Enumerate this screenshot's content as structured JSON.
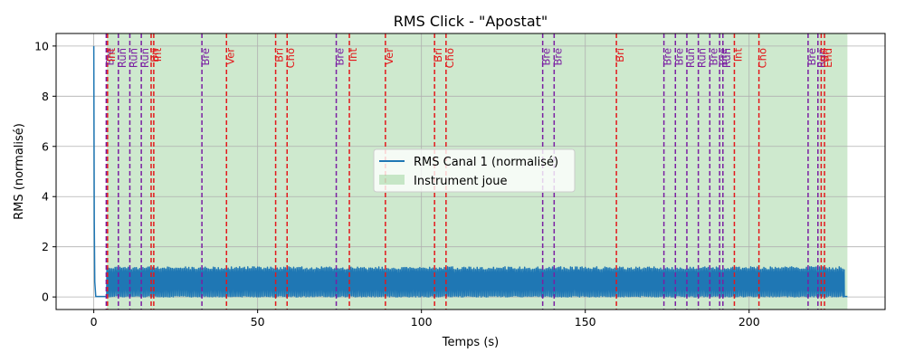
{
  "chart_data": {
    "type": "line",
    "title": "RMS Click - \"Apostat\"",
    "xlabel": "Temps (s)",
    "ylabel": "RMS (normalisé)",
    "xlim": [
      -11.5,
      241.5
    ],
    "ylim": [
      -0.5,
      10.5
    ],
    "xticks": [
      0,
      50,
      100,
      150,
      200
    ],
    "yticks": [
      0,
      2,
      4,
      6,
      8,
      10
    ],
    "grid": true,
    "legend_position": "center-right",
    "series": [
      {
        "name": "RMS Canal 1 (normalisé)",
        "color": "#1f77b4",
        "baseline": 0.02,
        "intro_peak": {
          "x": 0,
          "y": 10.0
        },
        "intro_decay_end": 0.6,
        "active_range": [
          4,
          229
        ],
        "pulse_min": 0.0,
        "pulse_max": 1.2,
        "pulse_period_s": 0.5
      }
    ],
    "shaded_region": {
      "name": "Instrument joue",
      "x_start": 4,
      "x_end": 230,
      "color": "#2ca02c",
      "alpha": 0.23
    },
    "markers": [
      {
        "x": 3.8,
        "label": "Bre",
        "color": "#7b1fa2"
      },
      {
        "x": 4.2,
        "label": "Int",
        "color": "#e3191c"
      },
      {
        "x": 7.5,
        "label": "Run",
        "color": "#7b1fa2"
      },
      {
        "x": 11.0,
        "label": "Run",
        "color": "#7b1fa2"
      },
      {
        "x": 14.5,
        "label": "Run",
        "color": "#7b1fa2"
      },
      {
        "x": 17.5,
        "label": "Bri",
        "color": "#e3191c"
      },
      {
        "x": 18.3,
        "label": "Int",
        "color": "#e3191c"
      },
      {
        "x": 33.0,
        "label": "Bre",
        "color": "#7b1fa2"
      },
      {
        "x": 40.5,
        "label": "Ver",
        "color": "#e3191c"
      },
      {
        "x": 55.5,
        "label": "Bri",
        "color": "#e3191c"
      },
      {
        "x": 59.0,
        "label": "Cho",
        "color": "#e3191c"
      },
      {
        "x": 74.0,
        "label": "Bre",
        "color": "#7b1fa2"
      },
      {
        "x": 78.0,
        "label": "Int",
        "color": "#e3191c"
      },
      {
        "x": 89.0,
        "label": "Ver",
        "color": "#e3191c"
      },
      {
        "x": 104.0,
        "label": "Bri",
        "color": "#e3191c"
      },
      {
        "x": 107.5,
        "label": "Cho",
        "color": "#e3191c"
      },
      {
        "x": 137.0,
        "label": "Bre",
        "color": "#7b1fa2"
      },
      {
        "x": 140.5,
        "label": "Bre",
        "color": "#7b1fa2"
      },
      {
        "x": 159.5,
        "label": "Bri",
        "color": "#e3191c"
      },
      {
        "x": 174.0,
        "label": "Bre",
        "color": "#7b1fa2"
      },
      {
        "x": 177.5,
        "label": "Bre",
        "color": "#7b1fa2"
      },
      {
        "x": 181.0,
        "label": "Run",
        "color": "#7b1fa2"
      },
      {
        "x": 184.5,
        "label": "Run",
        "color": "#7b1fa2"
      },
      {
        "x": 188.0,
        "label": "Bre",
        "color": "#7b1fa2"
      },
      {
        "x": 191.0,
        "label": "Bre",
        "color": "#7b1fa2"
      },
      {
        "x": 192.0,
        "label": "Run",
        "color": "#7b1fa2"
      },
      {
        "x": 195.5,
        "label": "Int",
        "color": "#e3191c"
      },
      {
        "x": 203.0,
        "label": "Cho",
        "color": "#e3191c"
      },
      {
        "x": 218.0,
        "label": "Bre",
        "color": "#7b1fa2"
      },
      {
        "x": 221.0,
        "label": "Run",
        "color": "#7b1fa2"
      },
      {
        "x": 222.0,
        "label": "Bri",
        "color": "#e3191c"
      },
      {
        "x": 223.0,
        "label": "End",
        "color": "#e3191c"
      }
    ]
  }
}
